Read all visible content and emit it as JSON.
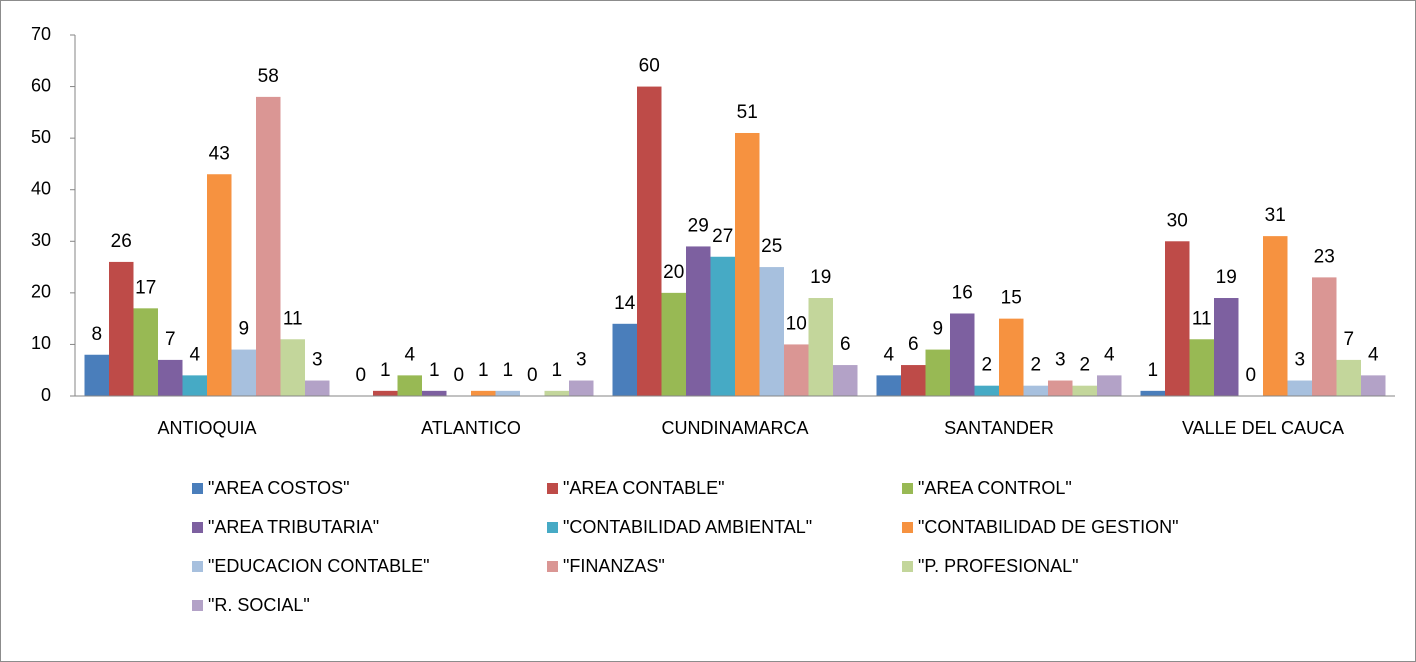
{
  "chart_data": {
    "type": "bar",
    "categories": [
      "ANTIOQUIA",
      "ATLANTICO",
      "CUNDINAMARCA",
      "SANTANDER",
      "VALLE DEL CAUCA"
    ],
    "series": [
      {
        "name": "\"AREA COSTOS\"",
        "color": "#4a7ebb",
        "values": [
          8,
          0,
          14,
          4,
          1
        ]
      },
      {
        "name": "\"AREA CONTABLE\"",
        "color": "#be4b48",
        "values": [
          26,
          1,
          60,
          6,
          30
        ]
      },
      {
        "name": "\"AREA CONTROL\"",
        "color": "#98b954",
        "values": [
          17,
          4,
          20,
          9,
          11
        ]
      },
      {
        "name": "\"AREA TRIBUTARIA\"",
        "color": "#7d60a0",
        "values": [
          7,
          1,
          29,
          16,
          19
        ]
      },
      {
        "name": "\"CONTABILIDAD AMBIENTAL\"",
        "color": "#46aac5",
        "values": [
          4,
          0,
          27,
          2,
          0
        ]
      },
      {
        "name": "\"CONTABILIDAD DE GESTION\"",
        "color": "#f69240",
        "values": [
          43,
          1,
          51,
          15,
          31
        ]
      },
      {
        "name": "\"EDUCACION CONTABLE\"",
        "color": "#a7c0de",
        "values": [
          9,
          1,
          25,
          2,
          3
        ]
      },
      {
        "name": "\"FINANZAS\"",
        "color": "#da9694",
        "values": [
          58,
          0,
          10,
          3,
          23
        ]
      },
      {
        "name": "\"P. PROFESIONAL\"",
        "color": "#c3d69b",
        "values": [
          11,
          1,
          19,
          2,
          7
        ]
      },
      {
        "name": "\"R. SOCIAL\"",
        "color": "#b3a2c7",
        "values": [
          3,
          3,
          6,
          4,
          4
        ]
      }
    ],
    "ylim": [
      0,
      70
    ],
    "yticks": [
      0,
      10,
      20,
      30,
      40,
      50,
      60,
      70
    ],
    "grid": false,
    "legend": "bottom"
  }
}
